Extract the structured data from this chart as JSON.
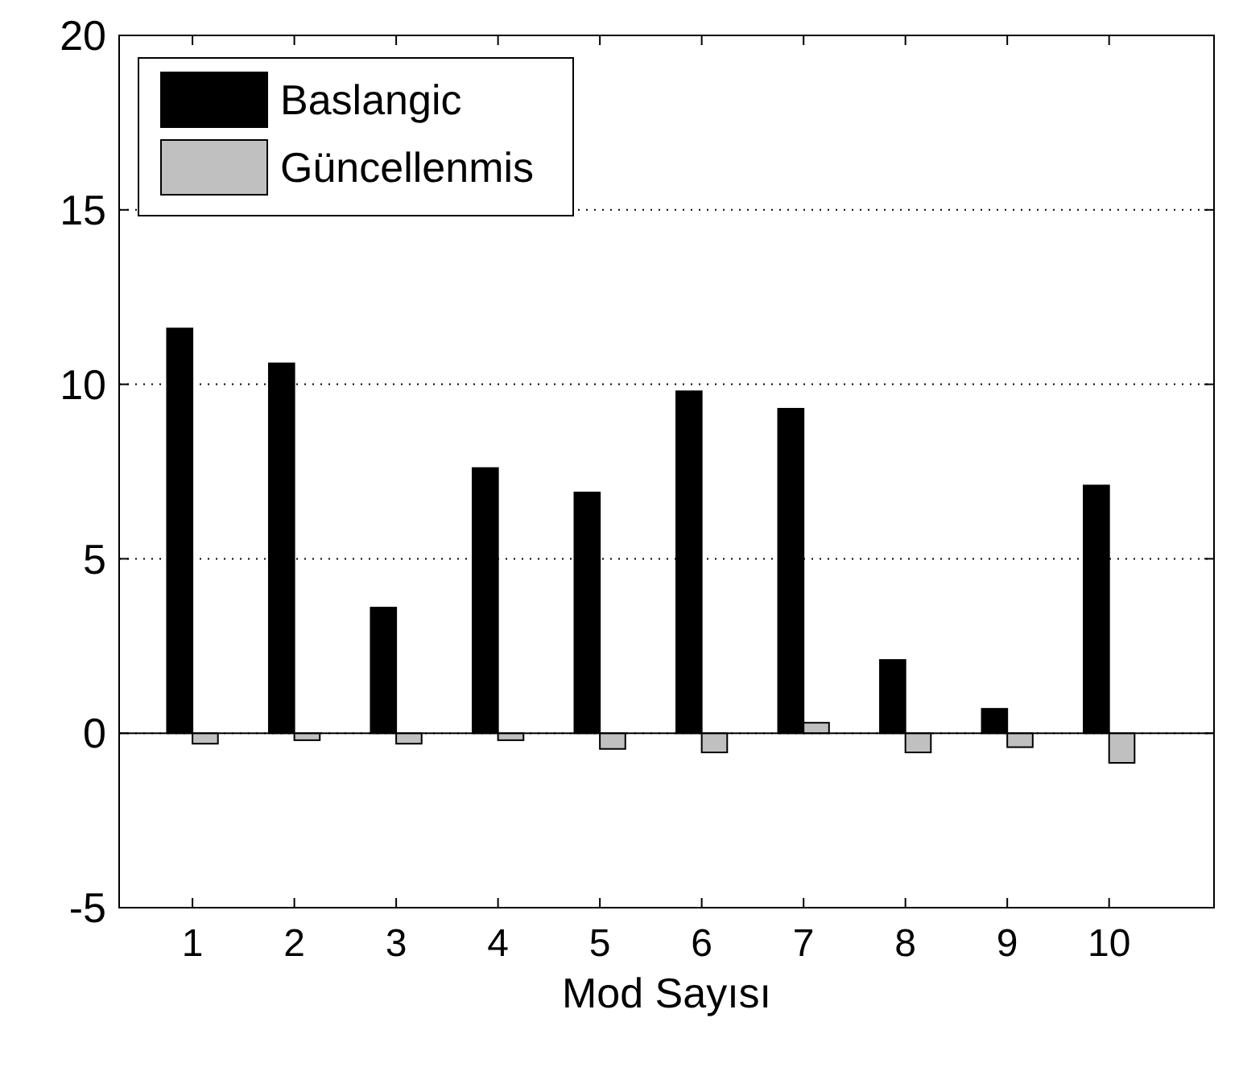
{
  "chart_data": {
    "type": "bar",
    "xlabel": "Mod Sayısı",
    "categories": [
      "1",
      "2",
      "3",
      "4",
      "5",
      "6",
      "7",
      "8",
      "9",
      "10"
    ],
    "series": [
      {
        "name": "Baslangic",
        "color": "#000000",
        "values": [
          11.6,
          10.6,
          3.6,
          7.6,
          6.9,
          9.8,
          9.3,
          2.1,
          0.7,
          7.1
        ]
      },
      {
        "name": "Güncellenmis",
        "color": "#c0c0c0",
        "values": [
          -0.3,
          -0.2,
          -0.3,
          -0.2,
          -0.45,
          -0.55,
          0.3,
          -0.55,
          -0.4,
          -0.85
        ]
      }
    ],
    "ylim": [
      -5,
      20
    ],
    "yticks": [
      -5,
      0,
      5,
      10,
      15,
      20
    ],
    "grid": "y",
    "legend": "top left"
  }
}
